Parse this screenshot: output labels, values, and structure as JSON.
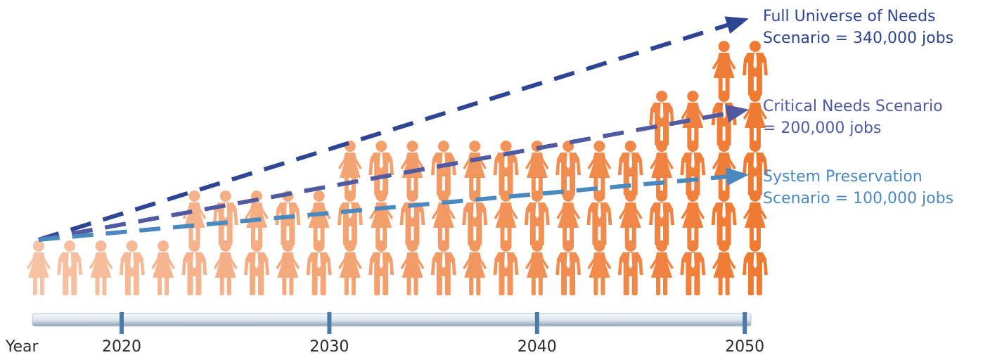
{
  "chart_data": {
    "type": "pictograph",
    "xlabel": "Year",
    "x_ticks": [
      2020,
      2030,
      2040,
      2050
    ],
    "xlim": [
      2015.7,
      2050.3
    ],
    "columns": [
      2016,
      2017.5,
      2019,
      2020.5,
      2022,
      2023.5,
      2025,
      2026.5,
      2028,
      2029.5,
      2031,
      2032.5,
      2034,
      2035.5,
      2037,
      2038.5,
      2040,
      2041.5,
      2043,
      2044.5,
      2046,
      2047.5,
      2049,
      2050.5
    ],
    "stack_heights": [
      1,
      1,
      1,
      1,
      1,
      2,
      2,
      2,
      2,
      2,
      3,
      3,
      3,
      3,
      3,
      3,
      3,
      3,
      3,
      3,
      4,
      4,
      5,
      5
    ],
    "figure_gender_pattern": [
      "f",
      "m"
    ],
    "colors": {
      "light_figure": "#f7c2a4",
      "dark_figure": "#ef7a32"
    },
    "series": [
      {
        "name": "Full Universe of Needs\nScenario = 340,000 jobs",
        "color": "#2e4593",
        "start": [
          2016,
          0
        ],
        "end": [
          2050,
          340000
        ]
      },
      {
        "name": "Critical Needs Scenario\n= 200,000 jobs",
        "color": "#4f5aa0",
        "start": [
          2016,
          0
        ],
        "end": [
          2050,
          200000
        ]
      },
      {
        "name": "System Preservation\nScenario = 100,000 jobs",
        "color": "#4a88c0",
        "start": [
          2016,
          0
        ],
        "end": [
          2050,
          100000
        ]
      }
    ]
  }
}
